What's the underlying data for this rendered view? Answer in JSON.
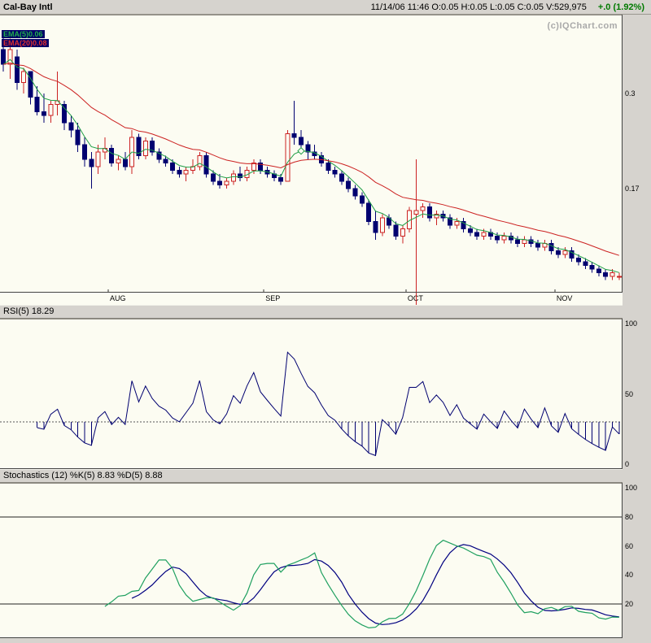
{
  "header": {
    "symbol": "Cal-Bay Intl",
    "quote": "11/14/06 11:46 O:0.05 H:0.05 L:0.05 C:0.05 V:529,975",
    "change": "+.0 (1.92%)",
    "change_color": "#007a00"
  },
  "watermark": "(c)IQChart.com",
  "panels": {
    "price": {
      "ema_labels": [
        {
          "text": "EMA(5)0.06",
          "color": "#21b14c"
        },
        {
          "text": "EMA(20)0.08",
          "color": "#e03030"
        }
      ]
    },
    "rsi": {
      "title": "RSI(5) 18.29"
    },
    "stoch": {
      "title": "Stochastics (12) %K(5) 8.83 %D(5) 8.88"
    }
  },
  "colors": {
    "window_bg": "#d6d3ce",
    "chart_bg": "#fcfcf2",
    "candle_up": "#cc2222",
    "candle_down": "#000070",
    "rsi_line": "#000070",
    "stoch_k": "#1fa060",
    "stoch_d": "#000080",
    "watermark": "#a9a9a9"
  },
  "chart_data": [
    {
      "type": "candlestick",
      "name": "Cal-Bay Intl daily price",
      "ylim": [
        0.028,
        0.408
      ],
      "y_ticks": [
        0.3,
        0.17
      ],
      "months": [
        {
          "label": "AUG",
          "index": 16
        },
        {
          "label": "SEP",
          "index": 39
        },
        {
          "label": "OCT",
          "index": 60
        },
        {
          "label": "NOV",
          "index": 82
        }
      ],
      "overlays": [
        {
          "name": "EMA(5)",
          "period": 5,
          "value": 0.06,
          "color": "#1f9e46"
        },
        {
          "name": "EMA(20)",
          "period": 20,
          "value": 0.08,
          "color": "#cc2222"
        }
      ],
      "marker": {
        "index": 44,
        "color": "#1f9e46"
      },
      "candles_ohlc": [
        [
          0.36,
          0.385,
          0.33,
          0.34
        ],
        [
          0.34,
          0.375,
          0.32,
          0.36
        ],
        [
          0.35,
          0.36,
          0.305,
          0.315
        ],
        [
          0.315,
          0.335,
          0.3,
          0.33
        ],
        [
          0.33,
          0.33,
          0.285,
          0.295
        ],
        [
          0.295,
          0.31,
          0.27,
          0.275
        ],
        [
          0.275,
          0.3,
          0.26,
          0.27
        ],
        [
          0.27,
          0.29,
          0.26,
          0.285
        ],
        [
          0.285,
          0.33,
          0.27,
          0.29
        ],
        [
          0.285,
          0.29,
          0.25,
          0.26
        ],
        [
          0.26,
          0.27,
          0.24,
          0.25
        ],
        [
          0.25,
          0.26,
          0.22,
          0.23
        ],
        [
          0.23,
          0.24,
          0.2,
          0.21
        ],
        [
          0.21,
          0.22,
          0.17,
          0.2
        ],
        [
          0.2,
          0.23,
          0.19,
          0.22
        ],
        [
          0.22,
          0.24,
          0.21,
          0.225
        ],
        [
          0.225,
          0.23,
          0.2,
          0.205
        ],
        [
          0.205,
          0.215,
          0.195,
          0.21
        ],
        [
          0.21,
          0.22,
          0.195,
          0.2
        ],
        [
          0.2,
          0.25,
          0.19,
          0.24
        ],
        [
          0.24,
          0.245,
          0.21,
          0.215
        ],
        [
          0.215,
          0.24,
          0.21,
          0.235
        ],
        [
          0.235,
          0.24,
          0.215,
          0.22
        ],
        [
          0.22,
          0.225,
          0.205,
          0.21
        ],
        [
          0.21,
          0.215,
          0.2,
          0.205
        ],
        [
          0.205,
          0.21,
          0.19,
          0.195
        ],
        [
          0.195,
          0.2,
          0.185,
          0.19
        ],
        [
          0.19,
          0.2,
          0.18,
          0.195
        ],
        [
          0.195,
          0.21,
          0.19,
          0.2
        ],
        [
          0.2,
          0.22,
          0.195,
          0.215
        ],
        [
          0.215,
          0.22,
          0.185,
          0.19
        ],
        [
          0.19,
          0.195,
          0.175,
          0.18
        ],
        [
          0.18,
          0.19,
          0.17,
          0.175
        ],
        [
          0.175,
          0.185,
          0.17,
          0.18
        ],
        [
          0.18,
          0.195,
          0.175,
          0.19
        ],
        [
          0.19,
          0.2,
          0.18,
          0.185
        ],
        [
          0.185,
          0.2,
          0.18,
          0.195
        ],
        [
          0.195,
          0.21,
          0.19,
          0.205
        ],
        [
          0.205,
          0.21,
          0.19,
          0.195
        ],
        [
          0.195,
          0.2,
          0.185,
          0.19
        ],
        [
          0.19,
          0.195,
          0.18,
          0.185
        ],
        [
          0.185,
          0.19,
          0.175,
          0.18
        ],
        [
          0.18,
          0.25,
          0.18,
          0.245
        ],
        [
          0.245,
          0.29,
          0.23,
          0.24
        ],
        [
          0.24,
          0.25,
          0.22,
          0.23
        ],
        [
          0.23,
          0.235,
          0.21,
          0.22
        ],
        [
          0.22,
          0.23,
          0.21,
          0.215
        ],
        [
          0.215,
          0.22,
          0.2,
          0.205
        ],
        [
          0.205,
          0.21,
          0.19,
          0.195
        ],
        [
          0.195,
          0.2,
          0.185,
          0.19
        ],
        [
          0.19,
          0.195,
          0.175,
          0.18
        ],
        [
          0.18,
          0.185,
          0.165,
          0.17
        ],
        [
          0.17,
          0.175,
          0.155,
          0.16
        ],
        [
          0.16,
          0.165,
          0.145,
          0.15
        ],
        [
          0.15,
          0.155,
          0.12,
          0.125
        ],
        [
          0.125,
          0.14,
          0.1,
          0.11
        ],
        [
          0.11,
          0.135,
          0.105,
          0.13
        ],
        [
          0.13,
          0.135,
          0.115,
          0.12
        ],
        [
          0.12,
          0.125,
          0.1,
          0.105
        ],
        [
          0.105,
          0.12,
          0.095,
          0.115
        ],
        [
          0.115,
          0.145,
          0.11,
          0.14
        ],
        [
          0.135,
          0.21,
          0.005,
          0.14
        ],
        [
          0.14,
          0.15,
          0.13,
          0.145
        ],
        [
          0.145,
          0.15,
          0.125,
          0.13
        ],
        [
          0.13,
          0.14,
          0.12,
          0.135
        ],
        [
          0.135,
          0.14,
          0.125,
          0.13
        ],
        [
          0.13,
          0.135,
          0.115,
          0.12
        ],
        [
          0.12,
          0.13,
          0.115,
          0.125
        ],
        [
          0.125,
          0.13,
          0.11,
          0.115
        ],
        [
          0.115,
          0.12,
          0.105,
          0.11
        ],
        [
          0.11,
          0.115,
          0.1,
          0.105
        ],
        [
          0.105,
          0.115,
          0.1,
          0.11
        ],
        [
          0.11,
          0.115,
          0.1,
          0.105
        ],
        [
          0.105,
          0.11,
          0.095,
          0.1
        ],
        [
          0.1,
          0.11,
          0.095,
          0.105
        ],
        [
          0.105,
          0.11,
          0.095,
          0.1
        ],
        [
          0.1,
          0.105,
          0.09,
          0.095
        ],
        [
          0.095,
          0.105,
          0.09,
          0.1
        ],
        [
          0.1,
          0.105,
          0.09,
          0.095
        ],
        [
          0.095,
          0.1,
          0.085,
          0.09
        ],
        [
          0.09,
          0.1,
          0.085,
          0.095
        ],
        [
          0.095,
          0.1,
          0.08,
          0.085
        ],
        [
          0.085,
          0.09,
          0.075,
          0.08
        ],
        [
          0.08,
          0.09,
          0.075,
          0.085
        ],
        [
          0.085,
          0.09,
          0.07,
          0.075
        ],
        [
          0.075,
          0.08,
          0.065,
          0.07
        ],
        [
          0.07,
          0.075,
          0.06,
          0.065
        ],
        [
          0.065,
          0.07,
          0.055,
          0.06
        ],
        [
          0.06,
          0.065,
          0.05,
          0.055
        ],
        [
          0.055,
          0.06,
          0.045,
          0.05
        ],
        [
          0.05,
          0.06,
          0.045,
          0.055
        ],
        [
          0.05,
          0.055,
          0.045,
          0.05
        ]
      ]
    },
    {
      "type": "line",
      "name": "RSI",
      "period": 5,
      "current_value": 18.29,
      "ylim": [
        0,
        100
      ],
      "y_ticks": [
        100,
        50,
        0
      ],
      "oversold_level": 30,
      "note": "RSI(5) series derived from candle closes; vertical ticks drawn where RSI < oversold_level"
    },
    {
      "type": "line",
      "name": "Stochastics",
      "lookback": 12,
      "k_period": 5,
      "d_period": 5,
      "k_current": 8.83,
      "d_current": 8.88,
      "ylim": [
        0,
        100
      ],
      "y_ticks": [
        100,
        80,
        60,
        40,
        20
      ],
      "hlines": [
        80,
        20
      ],
      "note": "%K and %D derived from candles"
    }
  ]
}
